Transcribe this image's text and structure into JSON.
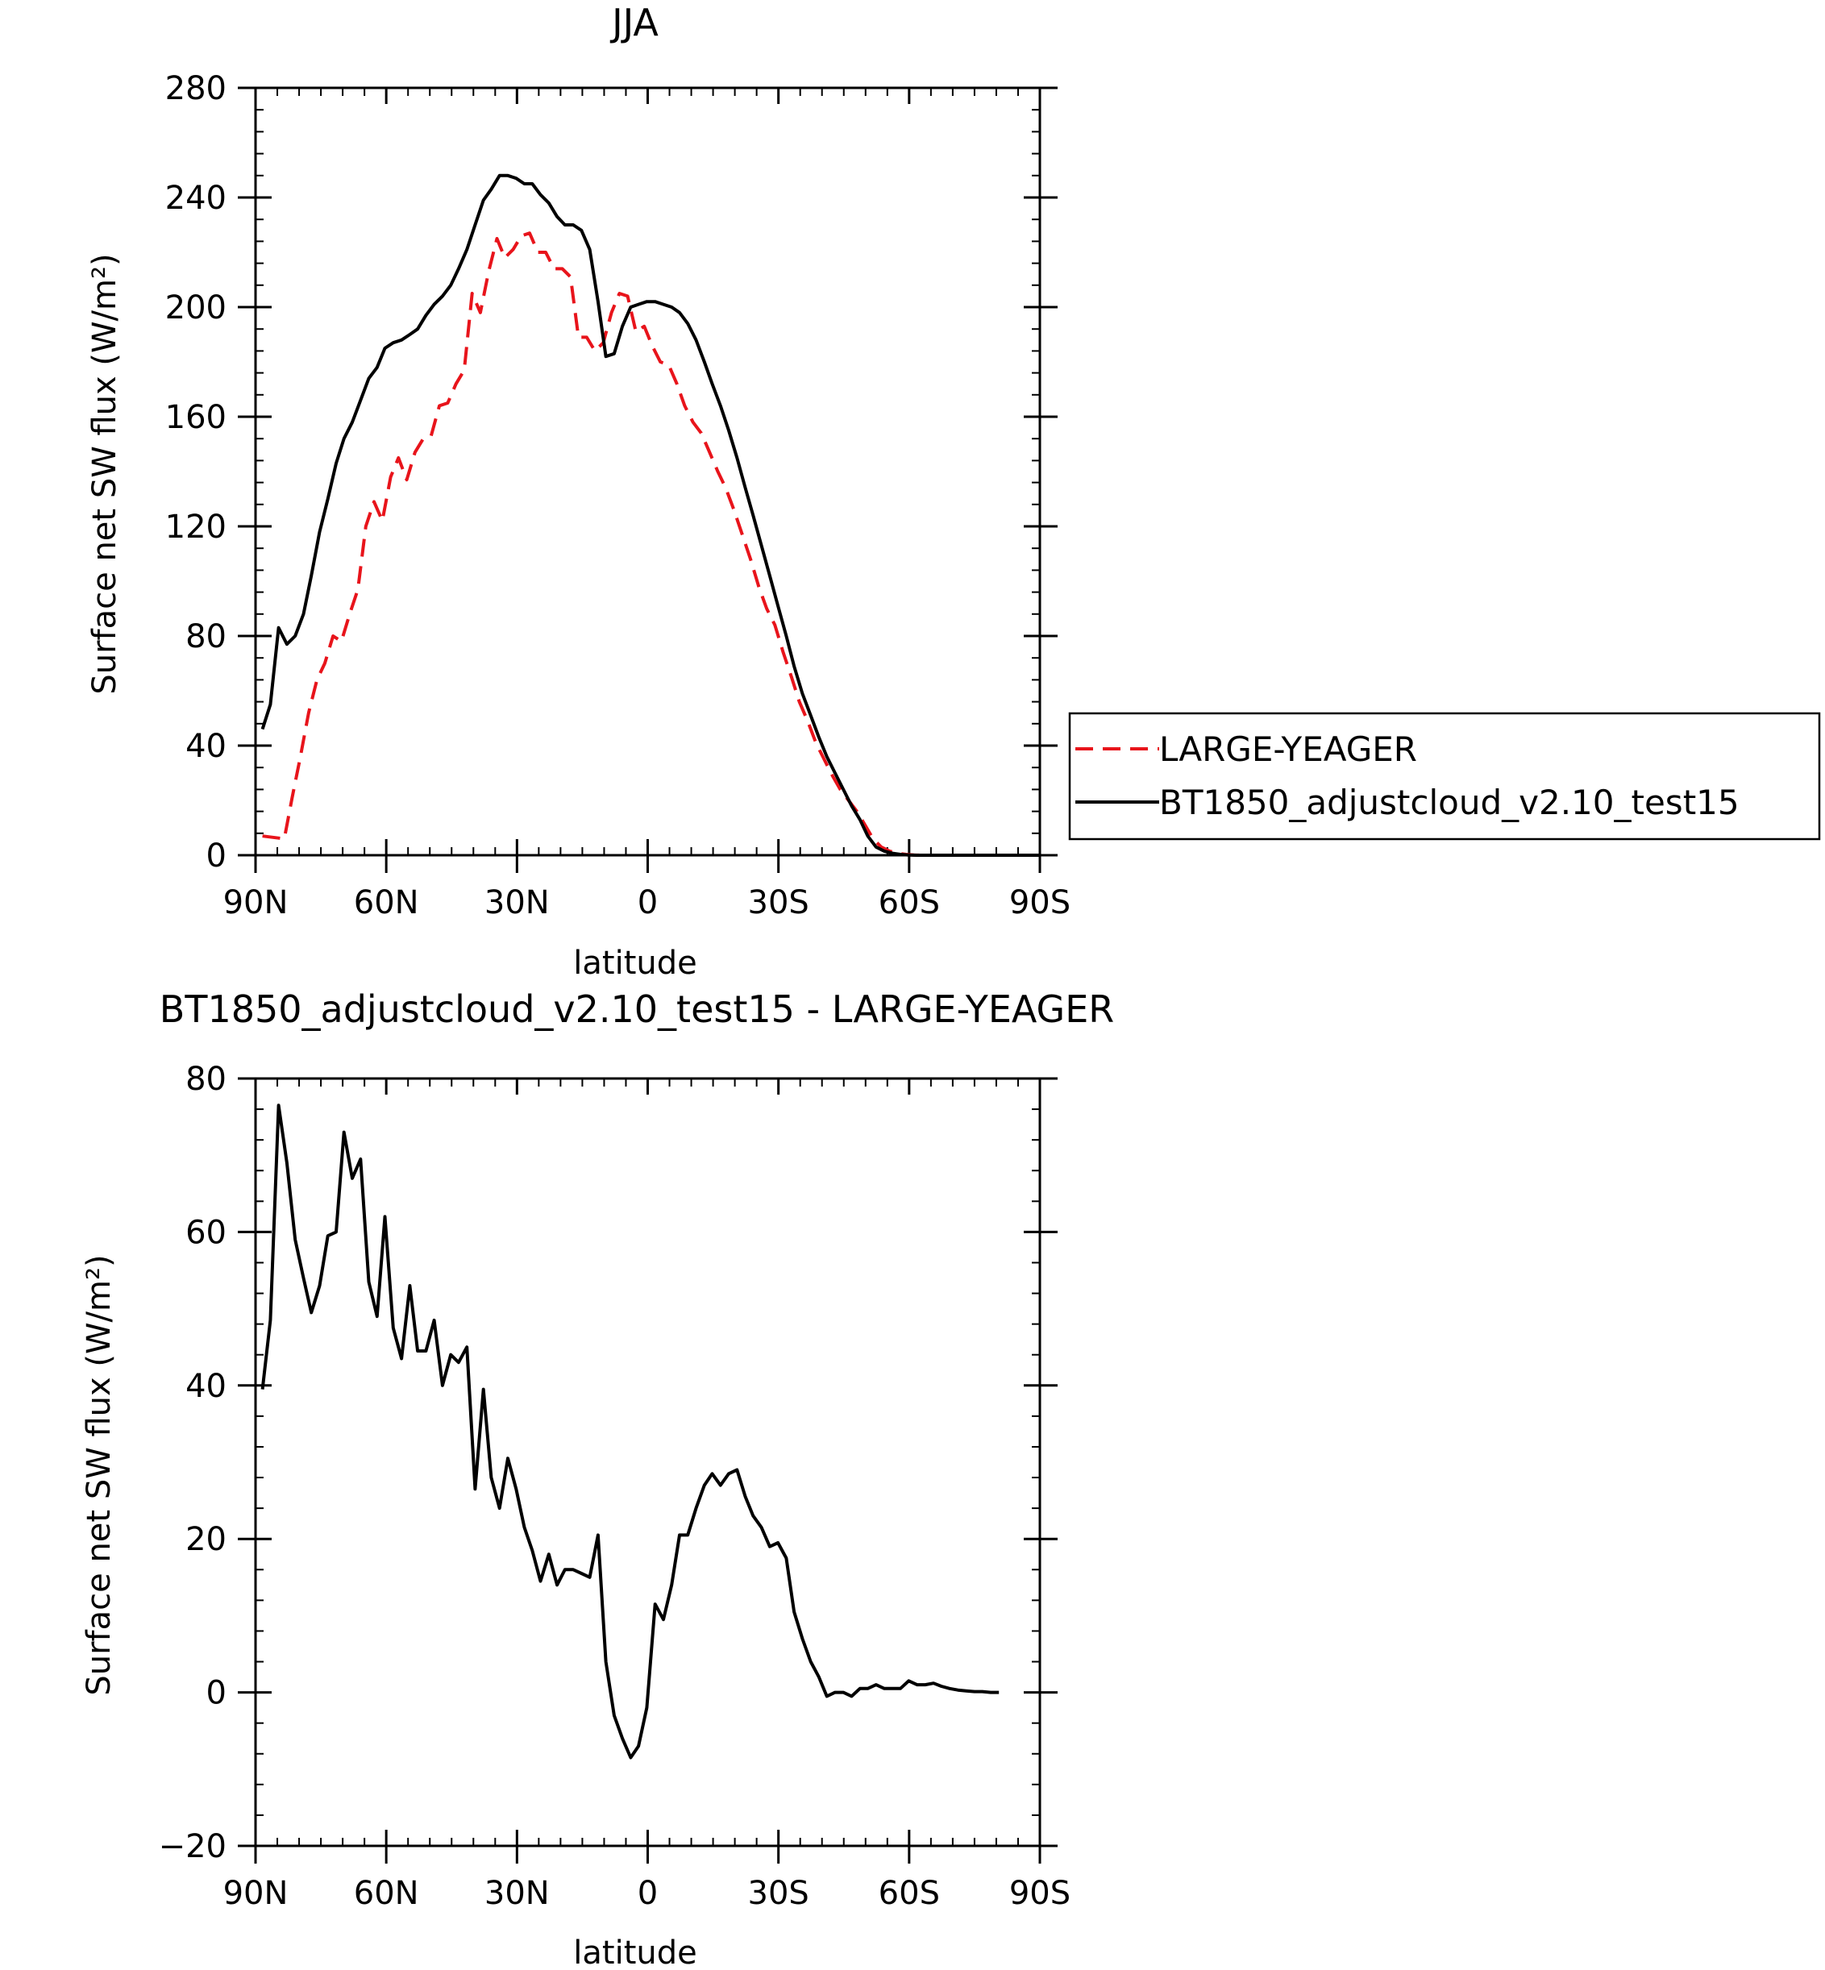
{
  "chart_data": [
    {
      "type": "line",
      "title": "JJA",
      "xlabel": "latitude",
      "ylabel": "Surface net SW flux (W/m²)",
      "xlim": [
        90,
        -90
      ],
      "ylim": [
        0,
        280
      ],
      "x_ticks": [
        90,
        60,
        30,
        0,
        -30,
        -60,
        -90
      ],
      "x_tick_labels": [
        "90N",
        "60N",
        "30N",
        "0",
        "30S",
        "60S",
        "90S"
      ],
      "y_ticks": [
        0,
        40,
        80,
        120,
        160,
        200,
        240,
        280
      ],
      "y_tick_labels": [
        "0",
        "40",
        "80",
        "120",
        "160",
        "200",
        "240",
        "280"
      ],
      "grid": false,
      "legend_position": "right",
      "series": [
        {
          "name": "LARGE-YEAGER",
          "color": "#e8141b",
          "style": "dashed",
          "x": [
            88.4,
            83.4,
            81.6,
            79.7,
            77.8,
            75.9,
            74.1,
            72.2,
            70.3,
            68.4,
            66.5,
            64.7,
            62.8,
            60.9,
            59.0,
            57.2,
            55.3,
            53.4,
            51.5,
            49.7,
            47.8,
            45.9,
            44.0,
            42.1,
            40.3,
            38.4,
            36.5,
            34.6,
            32.8,
            30.9,
            29.0,
            27.1,
            25.2,
            23.4,
            21.5,
            19.6,
            17.7,
            15.9,
            14.0,
            12.1,
            10.2,
            8.3,
            6.5,
            4.6,
            2.7,
            0.8,
            -1.0,
            -2.9,
            -4.8,
            -6.7,
            -8.5,
            -10.4,
            -12.3,
            -14.2,
            -16.1,
            -17.9,
            -19.8,
            -21.7,
            -23.6,
            -25.5,
            -27.3,
            -29.2,
            -31.1,
            -33.0,
            -34.8,
            -36.7,
            -38.6,
            -40.5,
            -42.4,
            -44.2,
            -46.1,
            -48.0,
            -49.9,
            -51.7,
            -53.6,
            -55.5,
            -57.4,
            -59.3,
            -61.1,
            -63.0,
            -64.9,
            -66.8,
            -68.7,
            -70.5,
            -72.4,
            -74.3,
            -76.2,
            -78.0,
            -79.9,
            -81.8,
            -83.7,
            -90.0
          ],
          "y": [
            7,
            6,
            21,
            36,
            52,
            64,
            70,
            80,
            78,
            88,
            97,
            120,
            129,
            122,
            138,
            145,
            137,
            147,
            152,
            153,
            164,
            165,
            172,
            177,
            205,
            198,
            213,
            225,
            218,
            221,
            226,
            227,
            220,
            220,
            214,
            214,
            211,
            189,
            189,
            184,
            187,
            198,
            205,
            204,
            191,
            193,
            186,
            180,
            179,
            172,
            164,
            158,
            154,
            147,
            140,
            134,
            126,
            117,
            108,
            98,
            90,
            84,
            74,
            65,
            56,
            49,
            41,
            35,
            29,
            24,
            20,
            16,
            11,
            6,
            3,
            1.5,
            0.7,
            0.3,
            0.1,
            0,
            0,
            0,
            0,
            0,
            0,
            0,
            0,
            0,
            0,
            0,
            0,
            0
          ]
        },
        {
          "name": "BT1850_adjustcloud_v2.10_test15",
          "color": "#000000",
          "style": "solid",
          "x": [
            88.4,
            86.6,
            84.7,
            82.8,
            80.9,
            79.0,
            77.2,
            75.3,
            73.4,
            71.5,
            69.7,
            67.8,
            65.9,
            64.0,
            62.1,
            60.3,
            58.4,
            56.5,
            54.6,
            52.8,
            50.9,
            49.0,
            47.1,
            45.2,
            43.4,
            41.5,
            39.6,
            37.7,
            35.9,
            34.0,
            32.1,
            30.2,
            28.3,
            26.5,
            24.6,
            22.7,
            20.8,
            19.0,
            17.1,
            15.2,
            13.3,
            11.4,
            9.6,
            7.7,
            5.8,
            3.9,
            2.1,
            0.2,
            -1.7,
            -3.6,
            -5.5,
            -7.3,
            -9.2,
            -11.1,
            -13.0,
            -14.8,
            -16.7,
            -18.6,
            -20.5,
            -22.4,
            -24.2,
            -26.1,
            -28.0,
            -29.9,
            -31.8,
            -33.6,
            -35.5,
            -37.4,
            -39.3,
            -41.1,
            -43.0,
            -44.9,
            -46.8,
            -48.7,
            -50.5,
            -52.4,
            -54.3,
            -56.2,
            -58.0,
            -59.9,
            -61.8,
            -63.7,
            -65.6,
            -67.4,
            -69.3,
            -71.2,
            -73.1,
            -75.0,
            -76.8,
            -78.7,
            -80.6,
            -82.5,
            -84.4,
            -86.2,
            -88.1,
            -90.0
          ],
          "y": [
            46,
            55,
            83,
            77,
            80,
            88,
            102,
            118,
            130,
            143,
            152,
            158,
            166,
            174,
            178,
            185,
            187,
            188,
            190,
            192,
            197,
            201,
            204,
            208,
            214,
            221,
            230,
            239,
            243,
            248,
            248,
            247,
            245,
            245,
            241,
            238,
            233,
            230,
            230,
            228,
            221,
            202,
            182,
            183,
            193,
            200,
            201,
            202,
            202,
            201,
            200,
            198,
            194,
            188,
            180,
            172,
            164,
            155,
            145,
            134,
            124,
            113,
            102,
            91,
            80,
            69,
            59,
            51,
            43,
            36,
            30,
            24,
            18,
            13,
            7,
            3,
            1.5,
            0.7,
            0.3,
            0.1,
            0,
            0,
            0,
            0,
            0,
            0,
            0,
            0,
            0,
            0,
            0,
            0,
            0,
            0,
            0,
            0
          ]
        }
      ]
    },
    {
      "type": "line",
      "title": "BT1850_adjustcloud_v2.10_test15 - LARGE-YEAGER",
      "xlabel": "latitude",
      "ylabel": "Surface net SW flux (W/m²)",
      "xlim": [
        90,
        -90
      ],
      "ylim": [
        -20,
        80
      ],
      "x_ticks": [
        90,
        60,
        30,
        0,
        -30,
        -60,
        -90
      ],
      "x_tick_labels": [
        "90N",
        "60N",
        "30N",
        "0",
        "30S",
        "60S",
        "90S"
      ],
      "y_ticks": [
        -20,
        0,
        20,
        40,
        60,
        80
      ],
      "y_tick_labels": [
        "−20",
        "0",
        "20",
        "40",
        "60",
        "80"
      ],
      "grid": false,
      "series": [
        {
          "color": "#000000",
          "style": "solid",
          "x": [
            88.4,
            86.6,
            84.7,
            82.8,
            80.9,
            79.0,
            77.2,
            75.3,
            73.4,
            71.5,
            69.7,
            67.8,
            65.9,
            64.0,
            62.1,
            60.3,
            58.4,
            56.5,
            54.6,
            52.8,
            50.9,
            49.0,
            47.1,
            45.2,
            43.4,
            41.5,
            39.6,
            37.7,
            35.9,
            34.0,
            32.1,
            30.2,
            28.3,
            26.5,
            24.6,
            22.7,
            20.8,
            19.0,
            17.1,
            15.2,
            13.3,
            11.4,
            9.6,
            7.7,
            5.8,
            3.9,
            2.1,
            0.2,
            -1.7,
            -3.6,
            -5.5,
            -7.3,
            -9.2,
            -11.1,
            -13.0,
            -14.8,
            -16.7,
            -18.6,
            -20.5,
            -22.4,
            -24.2,
            -26.1,
            -28.0,
            -29.9,
            -31.8,
            -33.6,
            -35.5,
            -37.4,
            -39.3,
            -41.1,
            -43.0,
            -44.9,
            -46.8,
            -48.7,
            -50.5,
            -52.4,
            -54.3,
            -56.2,
            -58.0,
            -59.9,
            -61.8,
            -63.7,
            -65.6,
            -67.4,
            -69.3,
            -71.2,
            -73.1,
            -75.0,
            -76.8,
            -78.7,
            -80.6
          ],
          "y": [
            39.5,
            48.5,
            76.5,
            69,
            59,
            54,
            49.5,
            53,
            59.5,
            60,
            73,
            67,
            69.5,
            53.5,
            49,
            62,
            47.5,
            43.5,
            53,
            44.5,
            44.5,
            48.5,
            40,
            44,
            43,
            45,
            26.5,
            39.5,
            28,
            24,
            30.5,
            26.5,
            21.5,
            18.5,
            14.5,
            18,
            14,
            16,
            16,
            15.5,
            15,
            20.5,
            4,
            -3,
            -6,
            -8.5,
            -7,
            -2,
            11.5,
            9.5,
            14,
            20.5,
            20.5,
            24,
            27,
            28.5,
            27,
            28.5,
            29,
            25.5,
            23,
            21.5,
            19,
            19.5,
            17.5,
            10.5,
            7,
            4,
            2,
            -0.5,
            0,
            0,
            -0.5,
            0.5,
            0.5,
            1,
            0.5,
            0.5,
            0.5,
            1.5,
            1,
            1,
            1.2,
            0.8,
            0.5,
            0.3,
            0.2,
            0.1,
            0.1,
            0,
            0
          ]
        }
      ]
    }
  ]
}
